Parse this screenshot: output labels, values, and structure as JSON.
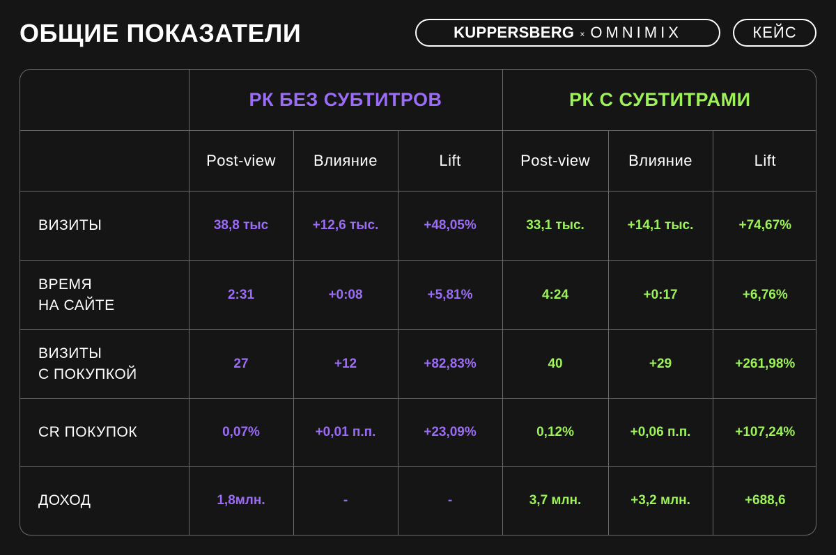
{
  "header": {
    "title": "ОБЩИЕ ПОКАЗАТЕЛИ",
    "brand_left": "KUPPERSBERG",
    "brand_sep": "×",
    "brand_right": "OMNIMIX",
    "case_label": "КЕЙС"
  },
  "colors": {
    "purple": "#9b6cf5",
    "green": "#9df25a",
    "background": "#151515",
    "grid": "#6b6b6b"
  },
  "table": {
    "groups": [
      {
        "label": "РК БЕЗ СУБТИТРОВ",
        "color": "purple"
      },
      {
        "label": "РК С СУБТИТРАМИ",
        "color": "green"
      }
    ],
    "subheaders": [
      "Post-view",
      "Влияние",
      "Lift",
      "Post-view",
      "Влияние",
      "Lift"
    ],
    "rows": [
      {
        "label_lines": [
          "ВИЗИТЫ"
        ],
        "values": [
          "38,8 тыс",
          "+12,6 тыс.",
          "+48,05%",
          "33,1 тыс.",
          "+14,1 тыс.",
          "+74,67%"
        ]
      },
      {
        "label_lines": [
          "ВРЕМЯ",
          "НА САЙТЕ"
        ],
        "values": [
          "2:31",
          "+0:08",
          "+5,81%",
          "4:24",
          "+0:17",
          "+6,76%"
        ]
      },
      {
        "label_lines": [
          "ВИЗИТЫ",
          "С ПОКУПКОЙ"
        ],
        "values": [
          "27",
          "+12",
          "+82,83%",
          "40",
          "+29",
          "+261,98%"
        ]
      },
      {
        "label_lines": [
          "CR ПОКУПОК"
        ],
        "values": [
          "0,07%",
          "+0,01 п.п.",
          "+23,09%",
          "0,12%",
          "+0,06 п.п.",
          "+107,24%"
        ]
      },
      {
        "label_lines": [
          "ДОХОД"
        ],
        "values": [
          "1,8млн.",
          "-",
          "-",
          "3,7 млн.",
          "+3,2 млн.",
          "+688,6"
        ]
      }
    ]
  }
}
